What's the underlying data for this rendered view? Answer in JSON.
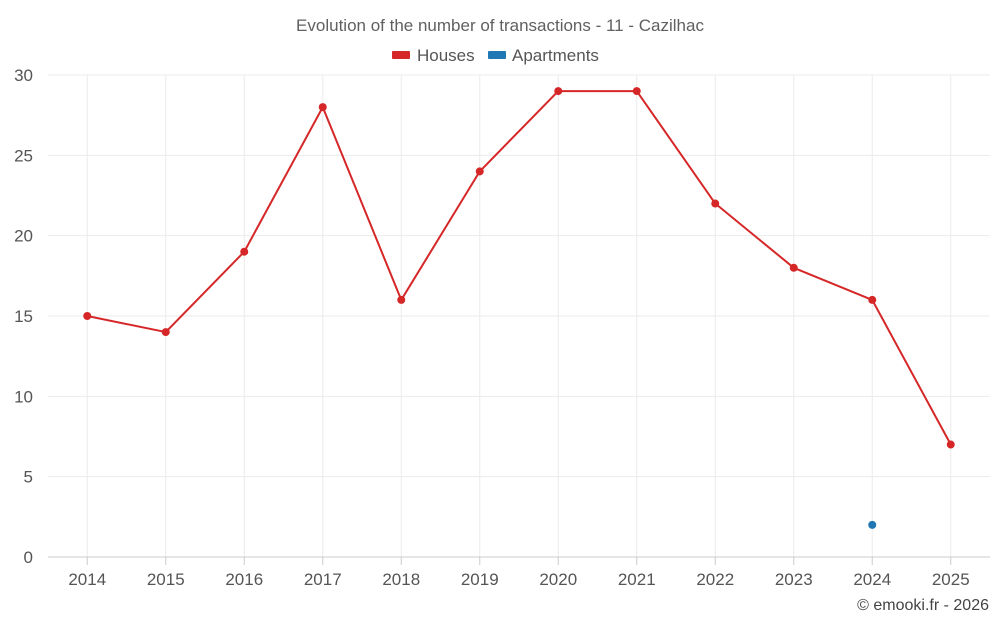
{
  "chart_data": {
    "type": "line",
    "title": "Evolution of the number of transactions - 11 - Cazilhac",
    "xlabel": "",
    "ylabel": "",
    "categories": [
      "2014",
      "2015",
      "2016",
      "2017",
      "2018",
      "2019",
      "2020",
      "2021",
      "2022",
      "2023",
      "2024",
      "2025"
    ],
    "ylim": [
      0,
      30
    ],
    "yticks": [
      0,
      5,
      10,
      15,
      20,
      25,
      30
    ],
    "grid": true,
    "legend_position": "top-center",
    "series": [
      {
        "name": "Houses",
        "color": "#d62728",
        "values": [
          15,
          14,
          19,
          28,
          16,
          24,
          29,
          29,
          22,
          18,
          16,
          7
        ]
      },
      {
        "name": "Apartments",
        "color": "#1f77b4",
        "values": [
          null,
          null,
          null,
          null,
          null,
          null,
          null,
          null,
          null,
          null,
          2,
          null
        ]
      }
    ]
  },
  "credit": "© emooki.fr - 2026"
}
